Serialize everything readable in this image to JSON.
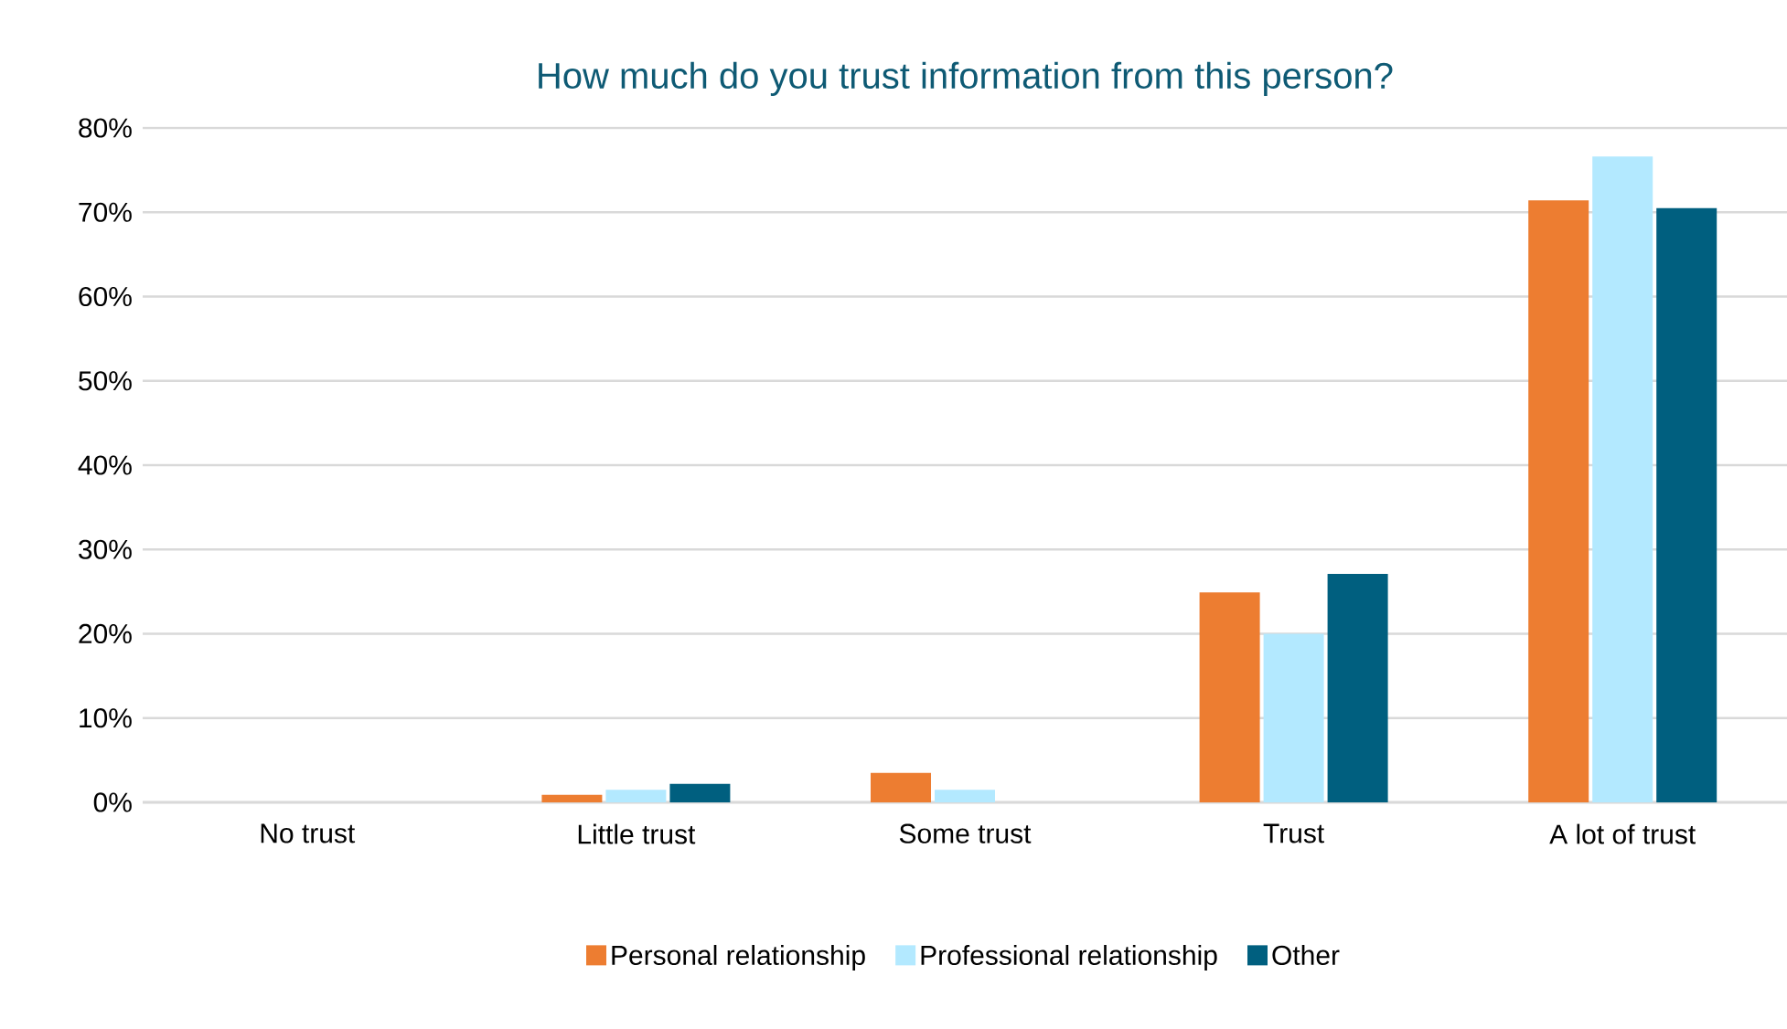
{
  "chart_data": {
    "type": "bar",
    "title": "How much do you trust information from this person?",
    "categories": [
      "No trust",
      "Little trust",
      "Some trust",
      "Trust",
      "A lot of trust"
    ],
    "series": [
      {
        "name": "Personal relationship",
        "color": "#ed7d31",
        "values": [
          0,
          0.9,
          3.5,
          24.9,
          71.4
        ]
      },
      {
        "name": "Professional relationship",
        "color": "#b3e9ff",
        "values": [
          0,
          1.5,
          1.5,
          20,
          76.6
        ]
      },
      {
        "name": "Other",
        "color": "#005f7f",
        "values": [
          0,
          2.2,
          0,
          27.1,
          70.5
        ]
      }
    ],
    "ylim": [
      0,
      80
    ],
    "yticks": [
      {
        "value": 0,
        "label": "0%"
      },
      {
        "value": 10,
        "label": "10%"
      },
      {
        "value": 20,
        "label": "20%"
      },
      {
        "value": 30,
        "label": "30%"
      },
      {
        "value": 40,
        "label": "40%"
      },
      {
        "value": 50,
        "label": "50%"
      },
      {
        "value": 60,
        "label": "60%"
      },
      {
        "value": 70,
        "label": "70%"
      },
      {
        "value": 80,
        "label": "80%"
      }
    ],
    "grid": "y",
    "legend": "bottom"
  }
}
